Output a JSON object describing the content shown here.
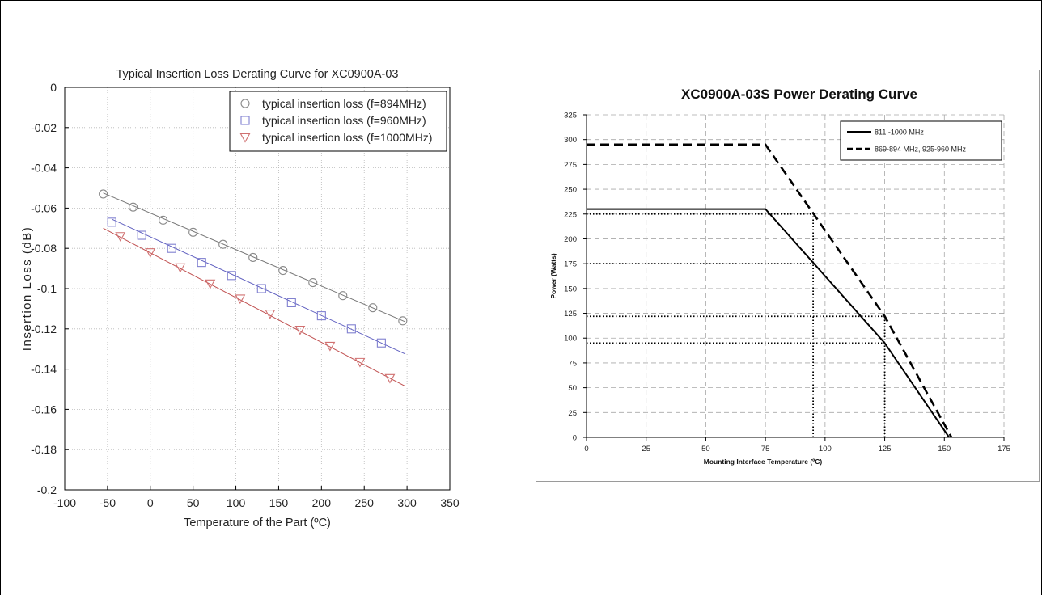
{
  "chart_data": [
    {
      "type": "scatter",
      "title": "Typical Insertion Loss Derating Curve for XC0900A-03",
      "xlabel": "Temperature of the Part (ºC)",
      "ylabel": "Insertion Loss (dB)",
      "xlim": [
        -100,
        350
      ],
      "ylim": [
        -0.2,
        0
      ],
      "x_ticks": [
        "-100",
        "-50",
        "0",
        "50",
        "100",
        "150",
        "200",
        "250",
        "300",
        "350"
      ],
      "y_ticks": [
        "0",
        "-0.02",
        "-0.04",
        "-0.06",
        "-0.08",
        "-0.1",
        "-0.12",
        "-0.14",
        "-0.16",
        "-0.18",
        "-0.2"
      ],
      "grid": true,
      "legend_position": "top-right",
      "series": [
        {
          "name": "typical insertion loss (f=894MHz)",
          "marker": "circle",
          "color": "#8a8a8a",
          "line_color": "#777777",
          "x": [
            -55,
            -20,
            15,
            50,
            85,
            120,
            155,
            190,
            225,
            260,
            295
          ],
          "y": [
            -0.053,
            -0.0595,
            -0.066,
            -0.072,
            -0.078,
            -0.0845,
            -0.091,
            -0.097,
            -0.1035,
            -0.1095,
            -0.116
          ],
          "fit": [
            [
              -55,
              -0.0525
            ],
            [
              298,
              -0.1165
            ]
          ]
        },
        {
          "name": "typical insertion loss (f=960MHz)",
          "marker": "square",
          "color": "#8080d0",
          "line_color": "#6060c0",
          "x": [
            -45,
            -10,
            25,
            60,
            95,
            130,
            165,
            200,
            235,
            270
          ],
          "y": [
            -0.067,
            -0.0735,
            -0.08,
            -0.087,
            -0.0935,
            -0.1,
            -0.107,
            -0.1135,
            -0.12,
            -0.127
          ],
          "fit": [
            [
              -45,
              -0.0655
            ],
            [
              298,
              -0.1325
            ]
          ]
        },
        {
          "name": "typical insertion loss (f=1000MHz)",
          "marker": "triangle-down",
          "color": "#d07070",
          "line_color": "#c05050",
          "x": [
            -35,
            0,
            35,
            70,
            105,
            140,
            175,
            210,
            245,
            280
          ],
          "y": [
            -0.074,
            -0.082,
            -0.0895,
            -0.0975,
            -0.105,
            -0.1125,
            -0.1205,
            -0.1285,
            -0.1365,
            -0.1445
          ],
          "fit": [
            [
              -55,
              -0.07
            ],
            [
              298,
              -0.1485
            ]
          ]
        }
      ]
    },
    {
      "type": "line",
      "title": "XC0900A-03S Power Derating Curve",
      "xlabel": "Mounting Interface Temperature (ºC)",
      "ylabel": "Power (Watts)",
      "xlim": [
        0,
        175
      ],
      "ylim": [
        0,
        325
      ],
      "x_ticks": [
        "0",
        "25",
        "50",
        "75",
        "100",
        "125",
        "150",
        "175"
      ],
      "y_ticks": [
        "0",
        "25",
        "50",
        "75",
        "100",
        "125",
        "150",
        "175",
        "200",
        "225",
        "250",
        "275",
        "300",
        "325"
      ],
      "grid": true,
      "legend_position": "top-right",
      "series": [
        {
          "name": "811 -1000 MHz",
          "style": "solid",
          "x": [
            0,
            75,
            125,
            152
          ],
          "y": [
            230,
            230,
            95,
            0
          ]
        },
        {
          "name": "869-894 MHz, 925-960 MHz",
          "style": "dashed",
          "x": [
            0,
            75,
            125,
            153
          ],
          "y": [
            295,
            295,
            122,
            0
          ]
        }
      ],
      "reference_lines": [
        {
          "x": [
            0,
            95
          ],
          "y": [
            225,
            225
          ]
        },
        {
          "x": [
            0,
            95
          ],
          "y": [
            175,
            175
          ]
        },
        {
          "x": [
            0,
            125
          ],
          "y": [
            122,
            122
          ]
        },
        {
          "x": [
            0,
            125
          ],
          "y": [
            95,
            95
          ]
        },
        {
          "x": [
            95,
            95
          ],
          "y": [
            0,
            225
          ]
        },
        {
          "x": [
            125,
            125
          ],
          "y": [
            0,
            122
          ]
        }
      ]
    }
  ]
}
